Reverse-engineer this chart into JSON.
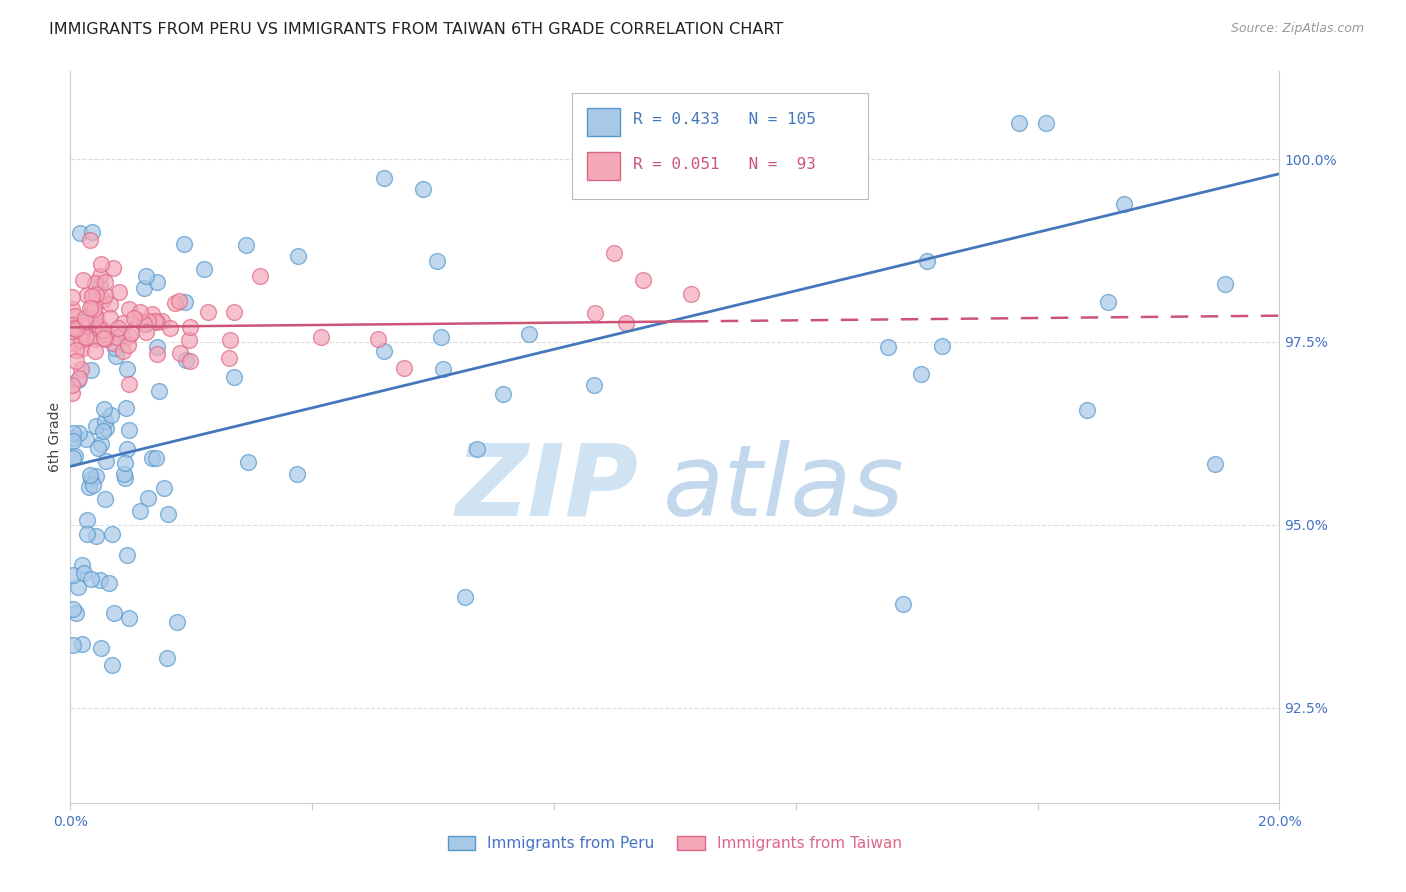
{
  "title": "IMMIGRANTS FROM PERU VS IMMIGRANTS FROM TAIWAN 6TH GRADE CORRELATION CHART",
  "source": "Source: ZipAtlas.com",
  "ylabel": "6th Grade",
  "yticks": [
    92.5,
    95.0,
    97.5,
    100.0
  ],
  "ytick_labels": [
    "92.5%",
    "95.0%",
    "97.5%",
    "100.0%"
  ],
  "xlim": [
    0.0,
    20.0
  ],
  "ylim": [
    91.2,
    101.2
  ],
  "blue_color": "#a8c8e8",
  "blue_edge_color": "#5599cc",
  "blue_line_color": "#4477bb",
  "pink_color": "#f4a8b8",
  "pink_edge_color": "#dd6688",
  "pink_line_color": "#cc5577",
  "axis_label_color": "#4472c4",
  "legend_text_color_blue": "#4477bb",
  "legend_text_color_pink": "#cc5577",
  "watermark_zip_color": "#c8dff0",
  "watermark_atlas_color": "#b0cce8",
  "title_color": "#222222",
  "source_color": "#999999",
  "grid_color": "#dddddd",
  "spine_color": "#cccccc"
}
